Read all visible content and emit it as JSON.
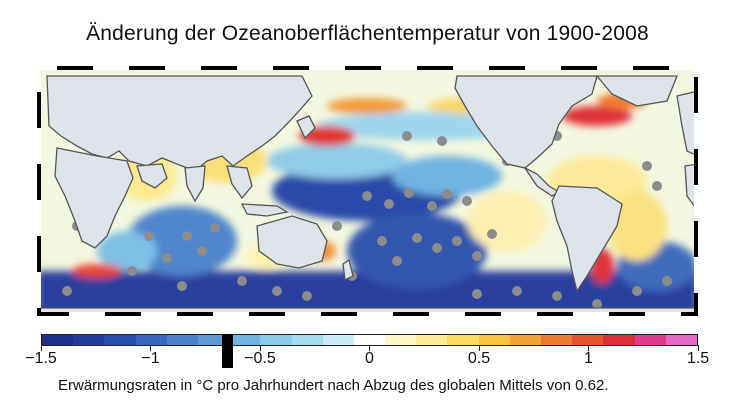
{
  "title": "Änderung der Ozeanoberflächentemperatur von 1900-2008",
  "caption": "Erwärmungsraten in °C pro Jahrhundert nach Abzug des globalen Mittels von 0.62.",
  "colorbar": {
    "min": -1.5,
    "max": 1.5,
    "ticks": [
      "−1.5",
      "−1",
      "−0.5",
      "0",
      "0.5",
      "1",
      "1.5"
    ],
    "colors": [
      "#1a2f8a",
      "#1f3c9c",
      "#2850b0",
      "#3566c0",
      "#4a80cc",
      "#5e9ad6",
      "#6fb4e2",
      "#8acbe9",
      "#a6dcef",
      "#c8ebf5",
      "#ffffff",
      "#fff7c4",
      "#fdeb92",
      "#fbdc5c",
      "#f8c440",
      "#f4a235",
      "#ee7a2e",
      "#e6532c",
      "#dc2e3a",
      "#e23a8a",
      "#e667c8"
    ]
  },
  "map": {
    "land_color": "#dfe3ea",
    "coast_color": "#555555",
    "missing_color": "#8c8c8c"
  }
}
